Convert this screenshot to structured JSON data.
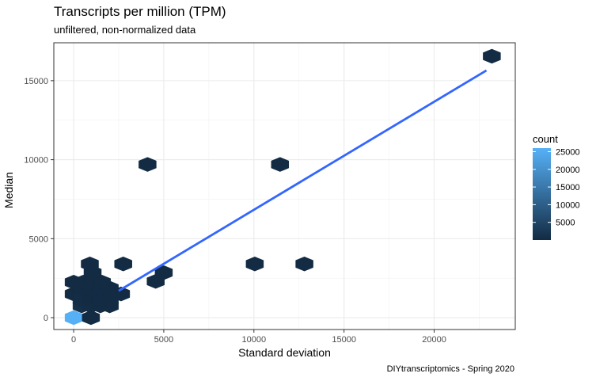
{
  "chart_data": {
    "type": "heatmap",
    "subtype": "hexbin with linear fit",
    "title": "Transcripts per million (TPM)",
    "subtitle": "unfiltered, non-normalized data",
    "caption": "DIYtranscriptomics - Spring 2020",
    "xlabel": "Standard deviation",
    "ylabel": "Median",
    "xlim": [
      -1100,
      24500
    ],
    "ylim": [
      -750,
      17400
    ],
    "x_ticks": [
      0,
      5000,
      10000,
      15000,
      20000
    ],
    "y_ticks": [
      0,
      5000,
      10000,
      15000
    ],
    "x_tick_labels": [
      "0",
      "5000",
      "10000",
      "15000",
      "20000"
    ],
    "y_tick_labels": [
      "0",
      "5000",
      "10000",
      "15000"
    ],
    "grid": true,
    "legend": {
      "title": "count",
      "placement": "right",
      "ticks": [
        5000,
        10000,
        15000,
        20000,
        25000
      ],
      "tick_labels": [
        "5000",
        "10000",
        "15000",
        "20000",
        "25000"
      ],
      "range": [
        1,
        26000
      ],
      "low_color": "#132B43",
      "high_color": "#56B1F7"
    },
    "hexbins": [
      {
        "x": 0,
        "y": 0,
        "count": 25800
      },
      {
        "x": 440,
        "y": 750,
        "count": 900
      },
      {
        "x": 960,
        "y": 750,
        "count": 300
      },
      {
        "x": 1480,
        "y": 750,
        "count": 120
      },
      {
        "x": 2000,
        "y": 750,
        "count": 60
      },
      {
        "x": 960,
        "y": 0,
        "count": 30
      },
      {
        "x": 0,
        "y": 1500,
        "count": 5
      },
      {
        "x": 530,
        "y": 1500,
        "count": 200
      },
      {
        "x": 1050,
        "y": 1500,
        "count": 100
      },
      {
        "x": 1570,
        "y": 1500,
        "count": 60
      },
      {
        "x": 2100,
        "y": 1500,
        "count": 40
      },
      {
        "x": 2630,
        "y": 1500,
        "count": 10
      },
      {
        "x": 440,
        "y": 1120,
        "count": 400
      },
      {
        "x": 960,
        "y": 1120,
        "count": 150
      },
      {
        "x": 1480,
        "y": 1120,
        "count": 80
      },
      {
        "x": 2000,
        "y": 1120,
        "count": 30
      },
      {
        "x": 440,
        "y": 1870,
        "count": 50
      },
      {
        "x": 960,
        "y": 1870,
        "count": 40
      },
      {
        "x": 1480,
        "y": 1870,
        "count": 25
      },
      {
        "x": 2000,
        "y": 1870,
        "count": 10
      },
      {
        "x": 0,
        "y": 2250,
        "count": 5
      },
      {
        "x": 530,
        "y": 2250,
        "count": 20
      },
      {
        "x": 1050,
        "y": 2250,
        "count": 15
      },
      {
        "x": 1570,
        "y": 2250,
        "count": 5
      },
      {
        "x": 1050,
        "y": 2850,
        "count": 5
      },
      {
        "x": 900,
        "y": 3400,
        "count": 3
      },
      {
        "x": 2750,
        "y": 3400,
        "count": 2
      },
      {
        "x": 5000,
        "y": 2850,
        "count": 1
      },
      {
        "x": 4550,
        "y": 2300,
        "count": 1
      },
      {
        "x": 4100,
        "y": 9700,
        "count": 1
      },
      {
        "x": 11450,
        "y": 9700,
        "count": 1
      },
      {
        "x": 10050,
        "y": 3400,
        "count": 1
      },
      {
        "x": 12800,
        "y": 3400,
        "count": 1
      },
      {
        "x": 23200,
        "y": 16550,
        "count": 1
      }
    ],
    "fit_line": {
      "x": [
        2500,
        22900
      ],
      "y": [
        1700,
        15650
      ],
      "color": "#3366FF"
    }
  }
}
